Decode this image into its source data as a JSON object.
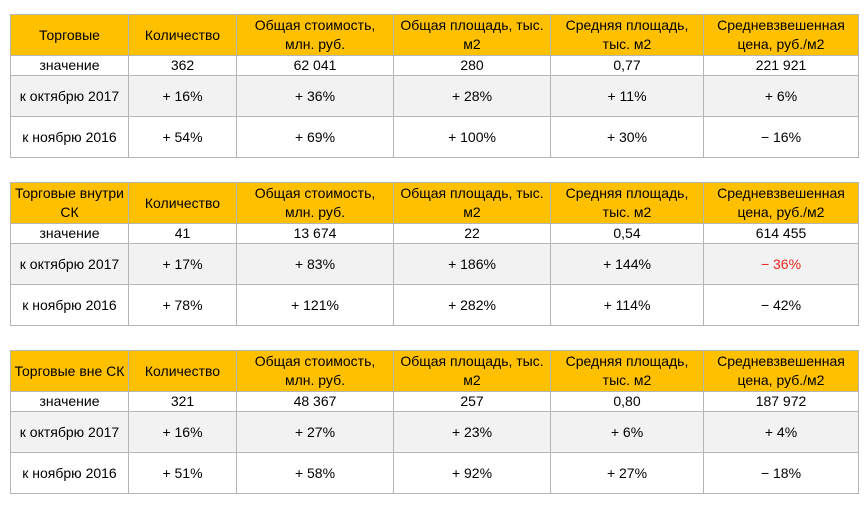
{
  "colors": {
    "header_bg": "#ffc000",
    "alt_row_bg": "#f2f2f2",
    "border": "#b5b5b5",
    "highlight_text": "#e5261f"
  },
  "columns": [
    "Количество",
    "Общая стоимость, млн. руб.",
    "Общая площадь, тыс. м2",
    "Средняя площадь, тыс. м2",
    "Средневзвешенная цена, руб./м2"
  ],
  "tables": [
    {
      "title": "Торговые",
      "rows": [
        {
          "label": "значение",
          "values": [
            "362",
            "62 041",
            "280",
            "0,77",
            "221 921"
          ]
        },
        {
          "label": "к октябрю 2017",
          "values": [
            "+ 16%",
            "+ 36%",
            "+ 28%",
            "+ 11%",
            "+ 6%"
          ]
        },
        {
          "label": "к ноябрю 2016",
          "values": [
            "+ 54%",
            "+ 69%",
            "+ 100%",
            "+ 30%",
            "− 16%"
          ]
        }
      ]
    },
    {
      "title": "Торговые внутри СК",
      "rows": [
        {
          "label": "значение",
          "values": [
            "41",
            "13 674",
            "22",
            "0,54",
            "614 455"
          ]
        },
        {
          "label": "к октябрю 2017",
          "values": [
            "+ 17%",
            "+ 83%",
            "+ 186%",
            "+ 144%",
            "− 36%"
          ]
        },
        {
          "label": "к ноябрю 2016",
          "values": [
            "+ 78%",
            "+ 121%",
            "+ 282%",
            "+ 114%",
            "− 42%"
          ]
        }
      ]
    },
    {
      "title": "Торговые вне СК",
      "rows": [
        {
          "label": "значение",
          "values": [
            "321",
            "48 367",
            "257",
            "0,80",
            "187 972"
          ]
        },
        {
          "label": "к октябрю 2017",
          "values": [
            "+ 16%",
            "+ 27%",
            "+ 23%",
            "+ 6%",
            "+ 4%"
          ]
        },
        {
          "label": "к ноябрю 2016",
          "values": [
            "+ 51%",
            "+ 58%",
            "+ 92%",
            "+ 27%",
            "− 18%"
          ]
        }
      ]
    }
  ]
}
